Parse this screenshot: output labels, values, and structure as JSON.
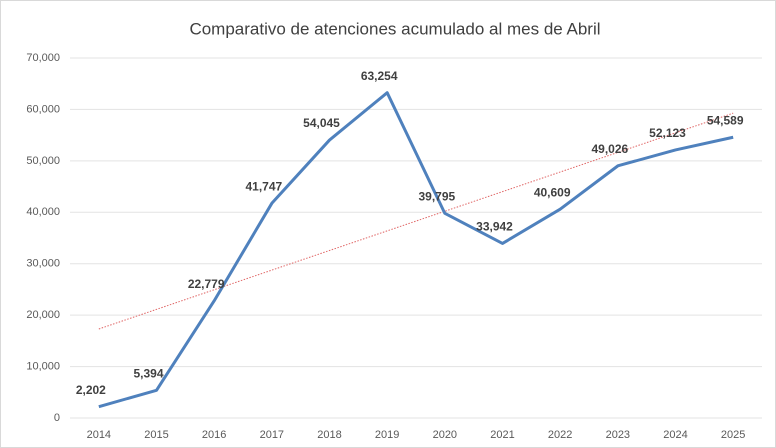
{
  "chart_data": {
    "type": "line",
    "title": "Comparativo de atenciones acumulado al mes de Abril",
    "categories": [
      "2014",
      "2015",
      "2016",
      "2017",
      "2018",
      "2019",
      "2020",
      "2021",
      "2022",
      "2023",
      "2024",
      "2025"
    ],
    "values": [
      2202,
      5394,
      22779,
      41747,
      54045,
      63254,
      39795,
      33942,
      40609,
      49026,
      52123,
      54589
    ],
    "value_labels": [
      "2,202",
      "5,394",
      "22,779",
      "41,747",
      "54,045",
      "63,254",
      "39,795",
      "33,942",
      "40,609",
      "49,026",
      "52,123",
      "54,589"
    ],
    "color": "#4f81bd",
    "trendline": {
      "type": "linear",
      "color": "#e06666"
    },
    "ylim": [
      0,
      70000
    ],
    "yticks": [
      0,
      {
        "value": 10000,
        "label": "10,000"
      },
      {
        "value": 20000,
        "label": "20,000"
      },
      {
        "value": 30000,
        "label": "30,000"
      },
      {
        "value": 40000,
        "label": "40,000"
      },
      {
        "value": 50000,
        "label": "50,000"
      },
      {
        "value": 60000,
        "label": "60,000"
      },
      {
        "value": 70000,
        "label": "70,000"
      }
    ],
    "grid": true
  }
}
